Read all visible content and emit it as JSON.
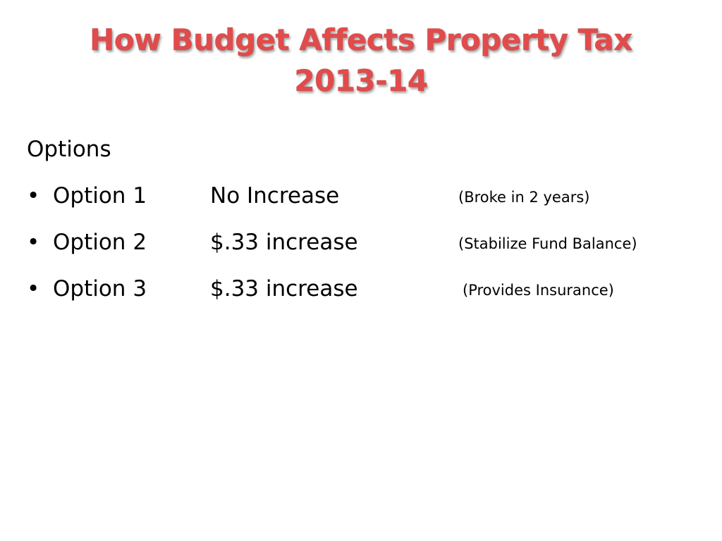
{
  "slide": {
    "title_line1": "How Budget Affects Property Tax",
    "title_line2": "2013-14",
    "heading": "Options",
    "bullet_char": "•",
    "options": [
      {
        "name": "Option 1",
        "amount": "No Increase",
        "note": "(Broke in 2 years)"
      },
      {
        "name": "Option 2",
        "amount": "$.33 increase",
        "note": "(Stabilize Fund Balance)"
      },
      {
        "name": "Option 3",
        "amount": "$.33 increase",
        "note": "(Provides Insurance)"
      }
    ]
  },
  "colors": {
    "title": "#e24b4b",
    "background": "#ffffff",
    "text": "#000000"
  }
}
